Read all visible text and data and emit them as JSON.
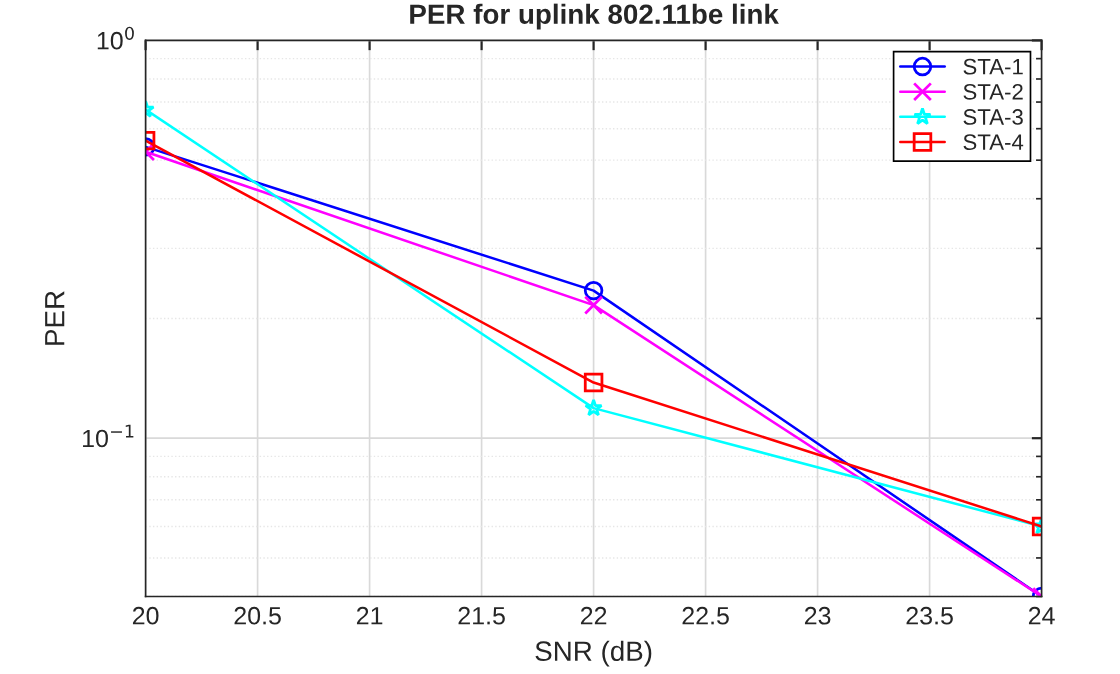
{
  "chart_data": {
    "type": "line",
    "title": "PER for uplink 802.11be link",
    "xlabel": "SNR (dB)",
    "ylabel": "PER",
    "x": [
      20,
      22,
      24
    ],
    "series": [
      {
        "name": "STA-1",
        "color": "#0000ff",
        "marker": "circle",
        "values": [
          0.54,
          0.235,
          0.04
        ]
      },
      {
        "name": "STA-2",
        "color": "#ff00ff",
        "marker": "cross",
        "values": [
          0.525,
          0.216,
          0.04
        ]
      },
      {
        "name": "STA-3",
        "color": "#00ffff",
        "marker": "star",
        "values": [
          0.67,
          0.119,
          0.06
        ]
      },
      {
        "name": "STA-4",
        "color": "#ff0000",
        "marker": "square",
        "values": [
          0.56,
          0.138,
          0.06
        ]
      }
    ],
    "log": "y",
    "xlim": [
      20,
      24
    ],
    "ylim": [
      0.04,
      1
    ],
    "xticks": [
      20,
      20.5,
      21,
      21.5,
      22,
      22.5,
      23,
      23.5,
      24
    ],
    "yticks": [
      {
        "value": 0.1,
        "label": "10$^{−1}$"
      },
      {
        "value": 1,
        "label": "10$^{0}$"
      }
    ],
    "grid": true,
    "legend": "top right",
    "line_style": "solid"
  }
}
